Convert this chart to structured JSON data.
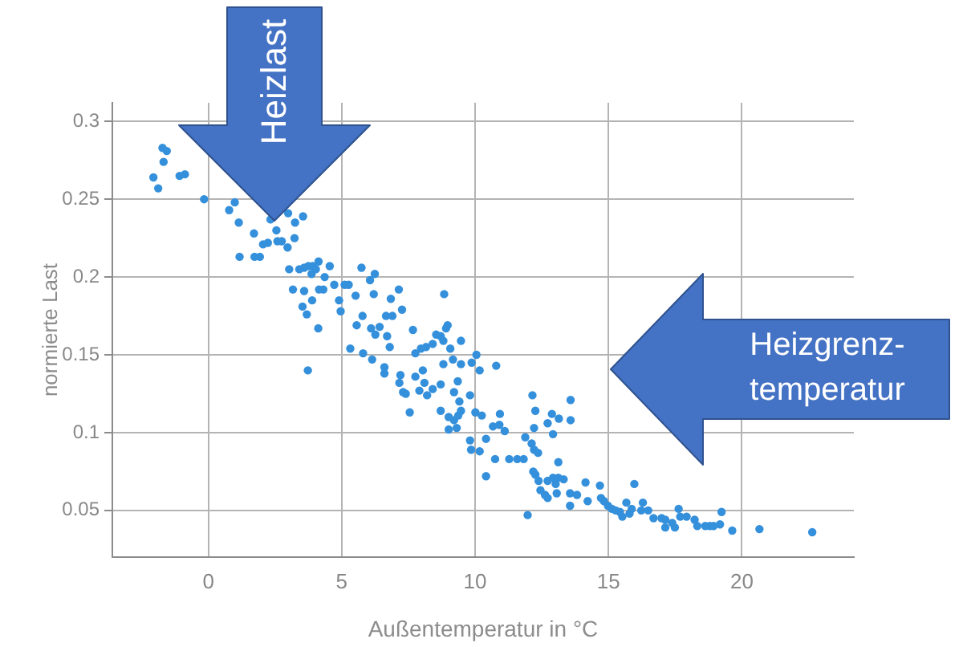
{
  "chart_data": {
    "type": "scatter",
    "xlabel": "Außentemperatur in °C",
    "ylabel": "normierte Last",
    "annotations": [
      {
        "text": "Heizlast",
        "x": 2.5,
        "y": 0.236
      },
      "Heizgrenz-temperatur"
    ],
    "x": [
      -1.72,
      -1.56,
      -1.68,
      -2.06,
      -1.88,
      -1.08,
      -0.88,
      -0.16,
      0.78,
      0.99,
      1.14,
      1.17,
      1.71,
      1.73,
      1.93,
      2.05,
      2.23,
      2.33,
      2.55,
      2.59,
      2.75,
      2.97,
      2.99,
      3.23,
      3.25,
      3.55,
      3.03,
      3.41,
      3.59,
      3.75,
      3.91,
      4.03,
      4.13,
      3.87,
      4.36,
      4.55,
      3.17,
      3.59,
      4.15,
      4.31,
      4.72,
      5.11,
      4.9,
      4.96,
      3.53,
      3.69,
      3.89,
      4.12,
      5.26,
      5.52,
      5.56,
      5.74,
      6.06,
      6.24,
      6.2,
      5.78,
      6.1,
      6.42,
      6.66,
      6.9,
      6.84,
      7.14,
      7.26,
      7.67,
      6.26,
      6.7,
      8.84,
      8.97,
      8.91,
      8.54,
      8.71,
      8.81,
      8.41,
      8.16,
      7.97,
      7.76,
      9.47,
      9.07,
      10.05,
      8.81,
      9.17,
      9.47,
      9.87,
      10.17,
      10.79,
      8.71,
      8.41,
      9.35,
      9.21,
      9.41,
      9.47,
      9.37,
      9.81,
      8.71,
      9.01,
      9.01,
      9.21,
      9.31,
      10.01,
      10.25,
      10.93,
      9.81,
      9.85,
      10.17,
      10.41,
      10.67,
      10.91,
      11.11,
      10.75,
      11.28,
      11.58,
      11.82,
      11.88,
      12.12,
      12.21,
      12.36,
      12.15,
      12.26,
      12.21,
      12.88,
      13.14,
      12.92,
      12.72,
      13.58,
      13.58,
      13.12,
      5.32,
      5.8,
      6.14,
      3.73,
      6.6,
      6.6,
      7.2,
      7.16,
      7.3,
      7.4,
      7.76,
      8.04,
      8.1,
      8.2,
      7.91,
      7.55,
      6.8,
      15.97,
      14.68,
      14.72,
      14.83,
      14.98,
      15.13,
      15.27,
      15.43,
      15.52,
      15.67,
      15.87,
      15.79,
      16.29,
      16.49,
      16.23,
      16.69,
      16.99,
      17.13,
      17.13,
      17.39,
      17.63,
      17.69,
      17.49,
      17.93,
      18.23,
      18.33,
      18.63,
      18.8,
      18.94,
      19.18,
      19.24,
      19.64,
      20.66,
      22.64,
      11.97,
      10.41,
      12.45,
      12.62,
      12.72,
      12.38,
      12.72,
      12.92,
      13.12,
      13.32,
      13.02,
      13.06,
      13.56,
      13.56,
      13.82,
      14.14,
      14.22,
      12.18,
      12.26
    ],
    "values": [
      0.283,
      0.281,
      0.274,
      0.264,
      0.257,
      0.265,
      0.266,
      0.25,
      0.243,
      0.248,
      0.235,
      0.213,
      0.228,
      0.213,
      0.213,
      0.221,
      0.222,
      0.237,
      0.23,
      0.223,
      0.223,
      0.219,
      0.241,
      0.225,
      0.235,
      0.239,
      0.205,
      0.205,
      0.206,
      0.207,
      0.207,
      0.205,
      0.21,
      0.202,
      0.2,
      0.207,
      0.192,
      0.191,
      0.192,
      0.192,
      0.195,
      0.195,
      0.185,
      0.178,
      0.181,
      0.176,
      0.185,
      0.167,
      0.195,
      0.188,
      0.169,
      0.206,
      0.198,
      0.202,
      0.189,
      0.175,
      0.167,
      0.168,
      0.175,
      0.175,
      0.186,
      0.192,
      0.179,
      0.166,
      0.163,
      0.162,
      0.189,
      0.169,
      0.167,
      0.163,
      0.162,
      0.159,
      0.157,
      0.155,
      0.154,
      0.151,
      0.159,
      0.154,
      0.15,
      0.144,
      0.147,
      0.144,
      0.145,
      0.14,
      0.143,
      0.131,
      0.128,
      0.133,
      0.126,
      0.12,
      0.114,
      0.111,
      0.124,
      0.114,
      0.11,
      0.102,
      0.108,
      0.103,
      0.113,
      0.111,
      0.112,
      0.095,
      0.089,
      0.088,
      0.096,
      0.104,
      0.105,
      0.101,
      0.083,
      0.083,
      0.083,
      0.083,
      0.097,
      0.093,
      0.089,
      0.087,
      0.124,
      0.114,
      0.103,
      0.112,
      0.109,
      0.099,
      0.106,
      0.121,
      0.108,
      0.081,
      0.154,
      0.151,
      0.147,
      0.14,
      0.142,
      0.138,
      0.137,
      0.132,
      0.126,
      0.125,
      0.136,
      0.14,
      0.132,
      0.124,
      0.127,
      0.113,
      0.155,
      0.067,
      0.066,
      0.058,
      0.056,
      0.053,
      0.051,
      0.05,
      0.049,
      0.046,
      0.055,
      0.051,
      0.048,
      0.055,
      0.05,
      0.05,
      0.045,
      0.045,
      0.044,
      0.039,
      0.042,
      0.051,
      0.046,
      0.039,
      0.046,
      0.044,
      0.04,
      0.04,
      0.04,
      0.04,
      0.041,
      0.049,
      0.037,
      0.038,
      0.036,
      0.047,
      0.072,
      0.063,
      0.06,
      0.058,
      0.069,
      0.069,
      0.071,
      0.071,
      0.07,
      0.067,
      0.061,
      0.061,
      0.053,
      0.06,
      0.068,
      0.056,
      0.075,
      0.073
    ],
    "color": "#3590dc",
    "xlim": [
      -3.6,
      24.2
    ],
    "ylim": [
      0.02,
      0.312
    ],
    "xticks": [
      0,
      5,
      10,
      15,
      20
    ],
    "yticks": [
      0.05,
      0.1,
      0.15,
      0.2,
      0.25,
      0.3
    ],
    "grid": true,
    "marker": "circle"
  }
}
